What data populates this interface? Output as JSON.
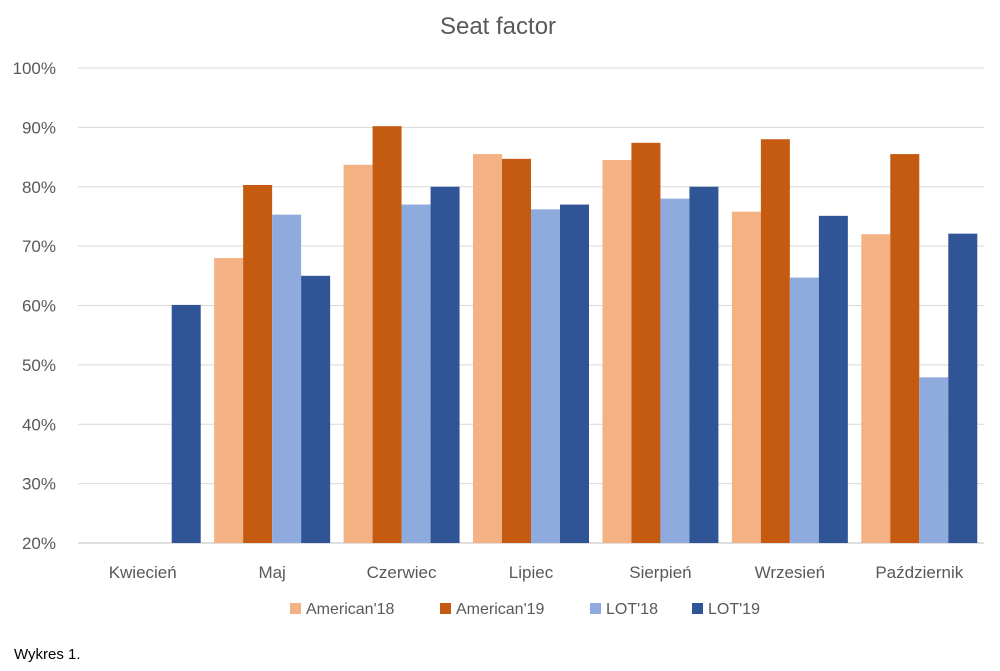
{
  "chart_data": {
    "type": "bar",
    "title": "Seat factor",
    "xlabel": "",
    "ylabel": "",
    "categories": [
      "Kwiecień",
      "Maj",
      "Czerwiec",
      "Lipiec",
      "Sierpień",
      "Wrzesień",
      "Październik"
    ],
    "series": [
      {
        "name": "American'18",
        "color": "#F4B183",
        "values": [
          null,
          68,
          83.7,
          85.5,
          84.5,
          75.8,
          72
        ]
      },
      {
        "name": "American'19",
        "color": "#C55A11",
        "values": [
          null,
          80.3,
          90.2,
          84.7,
          87.4,
          88,
          85.5
        ]
      },
      {
        "name": "LOT'18",
        "color": "#8FAADC",
        "values": [
          null,
          75.3,
          77,
          76.2,
          78,
          64.7,
          47.9
        ]
      },
      {
        "name": "LOT'19",
        "color": "#2F5597",
        "values": [
          60.1,
          65,
          80,
          77,
          80,
          75.1,
          72.1
        ]
      }
    ],
    "ylim": [
      20,
      100
    ],
    "yticks": [
      20,
      30,
      40,
      50,
      60,
      70,
      80,
      90,
      100
    ],
    "ytick_labels": [
      "20%",
      "30%",
      "40%",
      "50%",
      "60%",
      "70%",
      "80%",
      "90%",
      "100%"
    ],
    "grid": true,
    "legend_position": "bottom"
  },
  "caption": "Wykres 1."
}
